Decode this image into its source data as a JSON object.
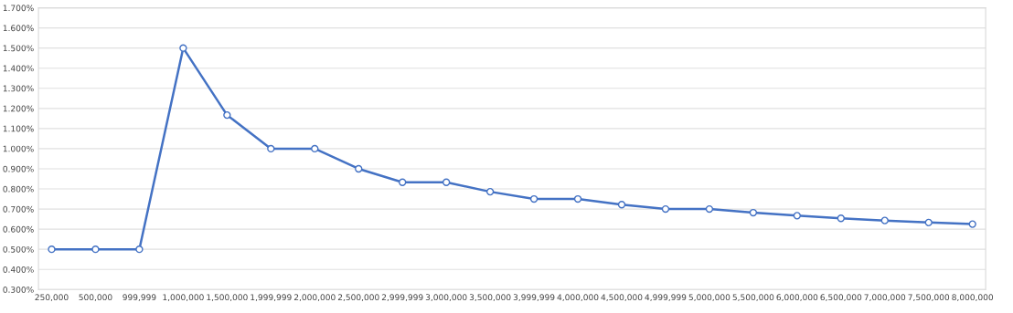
{
  "chart_data": {
    "type": "line",
    "categories": [
      "250,000",
      "500,000",
      "999,999",
      "1,000,000",
      "1,500,000",
      "1,999,999",
      "2,000,000",
      "2,500,000",
      "2,999,999",
      "3,000,000",
      "3,500,000",
      "3,999,999",
      "4,000,000",
      "4,500,000",
      "4,999,999",
      "5,000,000",
      "5,500,000",
      "6,000,000",
      "6,500,000",
      "7,000,000",
      "7,500,000",
      "8,000,000"
    ],
    "series": [
      {
        "color": "#4472c4",
        "values": [
          0.5,
          0.5,
          0.5,
          1.5,
          1.167,
          1.0,
          1.0,
          0.9,
          0.833,
          0.833,
          0.786,
          0.75,
          0.75,
          0.722,
          0.7,
          0.7,
          0.682,
          0.667,
          0.654,
          0.643,
          0.633,
          0.625
        ]
      }
    ],
    "ylim": [
      0.3,
      1.7
    ],
    "yticks": [
      {
        "value": 0.3,
        "label": "0.300%"
      },
      {
        "value": 0.4,
        "label": "0.400%"
      },
      {
        "value": 0.5,
        "label": "0.500%"
      },
      {
        "value": 0.6,
        "label": "0.600%"
      },
      {
        "value": 0.7,
        "label": "0.700%"
      },
      {
        "value": 0.8,
        "label": "0.800%"
      },
      {
        "value": 0.9,
        "label": "0.900%"
      },
      {
        "value": 1.0,
        "label": "1.000%"
      },
      {
        "value": 1.1,
        "label": "1.100%"
      },
      {
        "value": 1.2,
        "label": "1.200%"
      },
      {
        "value": 1.3,
        "label": "1.300%"
      },
      {
        "value": 1.4,
        "label": "1.400%"
      },
      {
        "value": 1.5,
        "label": "1.500%"
      },
      {
        "value": 1.6,
        "label": "1.600%"
      },
      {
        "value": 1.7,
        "label": "1.700%"
      }
    ],
    "grid": "y",
    "marker": "circle",
    "line_style": "solid",
    "legend": false
  }
}
